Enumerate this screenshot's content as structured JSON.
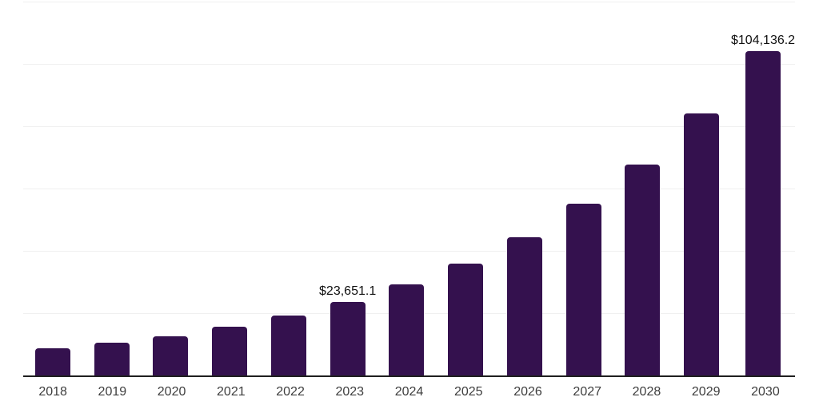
{
  "chart_data": {
    "type": "bar",
    "title": "",
    "xlabel": "",
    "ylabel": "",
    "categories": [
      "2018",
      "2019",
      "2020",
      "2021",
      "2022",
      "2023",
      "2024",
      "2025",
      "2026",
      "2027",
      "2028",
      "2029",
      "2030"
    ],
    "values": [
      8700,
      10400,
      12700,
      15600,
      19200,
      23651.1,
      29200,
      35900,
      44300,
      55100,
      67700,
      84100,
      104136.2
    ],
    "data_labels": [
      "",
      "",
      "",
      "",
      "",
      "$23,651.1",
      "",
      "",
      "",
      "",
      "",
      "",
      "$104,136.2"
    ],
    "ylim": [
      0,
      120000
    ],
    "gridline_step": 20000,
    "grid": "horizontal",
    "legend": "none",
    "y_tick_labels_visible": false
  },
  "colors": {
    "bar": "#34114e",
    "axis_line": "#1f1f1f",
    "gridline": "#f0f0f0",
    "tick_label": "#3d3d3d",
    "data_label": "#111111",
    "background": "#ffffff"
  }
}
